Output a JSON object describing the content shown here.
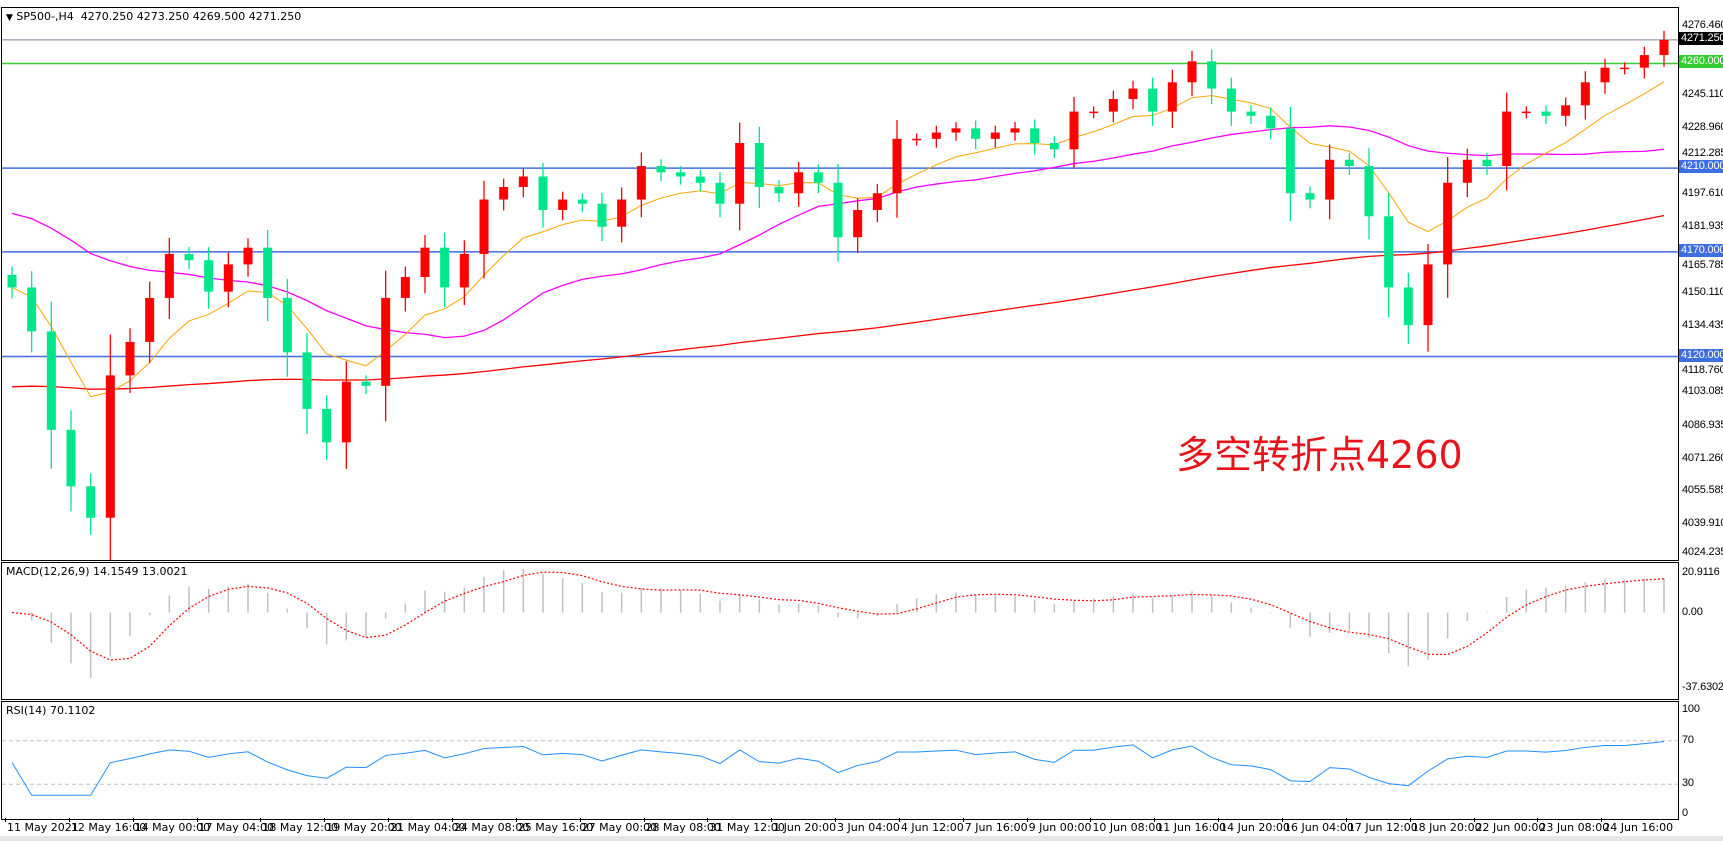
{
  "header": {
    "menu_icon": "triangle-down-icon",
    "symbol": "SP500-,H4",
    "ohlc": "4270.250 4273.250 4269.500 4271.250"
  },
  "annotation": "多空转折点4260",
  "colors": {
    "bull": "#ff0000",
    "bear": "#00e68a",
    "ma_fast": "#ffa500",
    "ma_mid": "#ff00ff",
    "ma_slow": "#ff0000",
    "level_support": "#3d6fe0",
    "level_pivot": "#33cc33",
    "current_price": "#778899",
    "macd_hist": "#c0c0c0",
    "macd_signal": "#ff0000",
    "rsi": "#1e90ff"
  },
  "chart_data": {
    "type": "candlestick",
    "title": "SP500-,H4",
    "ylim": [
      4024.235,
      4276.46
    ],
    "y_ticks": [
      "4276.460",
      "4245.110",
      "4228.960",
      "4212.285",
      "4197.610",
      "4181.935",
      "4165.785",
      "4150.110",
      "4134.435",
      "4118.760",
      "4103.085",
      "4086.935",
      "4071.260",
      "4055.585",
      "4039.910",
      "4024.235"
    ],
    "closes": [
      4153,
      4132,
      4085,
      4058,
      4043,
      4111,
      4127,
      4148,
      4169,
      4166,
      4151,
      4164,
      4172,
      4148,
      4122,
      4095,
      4079,
      4108,
      4106,
      4148,
      4158,
      4172,
      4153,
      4169,
      4195,
      4201,
      4206,
      4190,
      4195,
      4193,
      4182,
      4195,
      4211,
      4208,
      4206,
      4203,
      4193,
      4222,
      4201,
      4198,
      4208,
      4203,
      4177,
      4190,
      4198,
      4224,
      4224,
      4227,
      4229,
      4224,
      4227,
      4229,
      4222,
      4219,
      4237,
      4237,
      4243,
      4248,
      4237,
      4251,
      4261,
      4248,
      4237,
      4235,
      4229,
      4198,
      4195,
      4214,
      4211,
      4187,
      4153,
      4135,
      4164,
      4203,
      4214,
      4211,
      4237,
      4237,
      4235,
      4240,
      4251,
      4258,
      4258,
      4264,
      4271.25
    ],
    "current_price": {
      "value": 4271.25,
      "label": "4271.250"
    },
    "levels": [
      {
        "value": 4260,
        "label": "4260.000",
        "color": "#33cc33"
      },
      {
        "value": 4210,
        "label": "4210.000",
        "color": "#3d6fe0"
      },
      {
        "value": 4170,
        "label": "4170.000",
        "color": "#3d6fe0"
      },
      {
        "value": 4120,
        "label": "4120.000",
        "color": "#3d6fe0"
      }
    ],
    "x_labels": [
      "11 May 2021",
      "12 May 16:00",
      "14 May 00:00",
      "17 May 04:00",
      "18 May 12:00",
      "19 May 20:00",
      "21 May 04:00",
      "24 May 08:00",
      "25 May 16:00",
      "27 May 00:00",
      "28 May 08:00",
      "31 May 12:00",
      "1 Jun 20:00",
      "3 Jun 04:00",
      "4 Jun 12:00",
      "7 Jun 16:00",
      "9 Jun 00:00",
      "10 Jun 08:00",
      "11 Jun 16:00",
      "14 Jun 20:00",
      "16 Jun 04:00",
      "17 Jun 12:00",
      "18 Jun 20:00",
      "22 Jun 00:00",
      "23 Jun 08:00",
      "24 Jun 16:00"
    ],
    "grid": false
  },
  "macd": {
    "label": "MACD(12,26,9) 14.1549 13.0021",
    "ylim": [
      -37.6302,
      20.9116
    ],
    "ticks": [
      "20.9116",
      "0.00",
      "-37.6302"
    ]
  },
  "rsi": {
    "label": "RSI(14) 70.1102",
    "ylim": [
      0,
      100
    ],
    "levels": [
      70,
      30
    ],
    "ticks": [
      "100",
      "70",
      "30",
      "0"
    ]
  }
}
